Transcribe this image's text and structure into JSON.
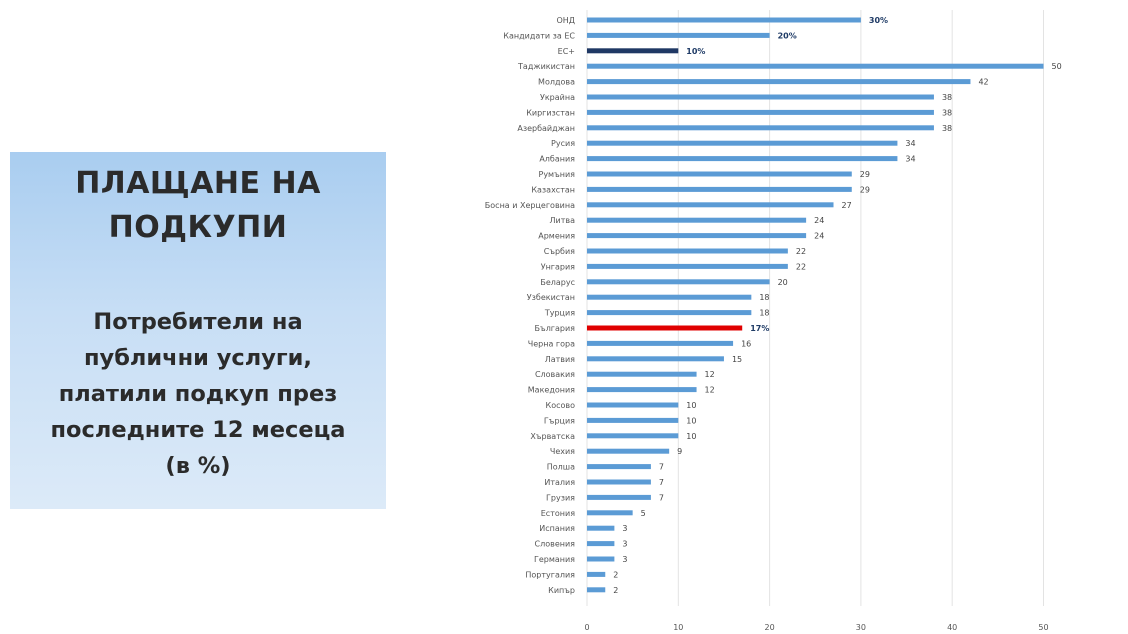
{
  "panel": {
    "title_lines": [
      "ПЛАЩАНЕ НА",
      "ПОДКУПИ"
    ],
    "subtitle_lines": [
      "Потребители на",
      "публични услуги,",
      "платили подкуп през",
      "последните 12 месеца",
      "(в %)"
    ]
  },
  "chart_data": {
    "type": "bar",
    "orientation": "horizontal",
    "xlim": [
      0,
      60
    ],
    "ticks": [
      0,
      10,
      20,
      30,
      40,
      50,
      60
    ],
    "grid": true,
    "colors": {
      "default": "#5b9bd5",
      "eu": "#1f3864",
      "bulgaria": "#e00000"
    },
    "categories": [
      {
        "name": "ОНД",
        "value": 30,
        "label": "30%",
        "bold": true
      },
      {
        "name": "Кандидати за ЕС",
        "value": 20,
        "label": "20%",
        "bold": true
      },
      {
        "name": "ЕС+",
        "value": 10,
        "label": "10%",
        "bold": true,
        "color": "eu"
      },
      {
        "name": "Таджикистан",
        "value": 50,
        "label": "50"
      },
      {
        "name": "Молдова",
        "value": 42,
        "label": "42"
      },
      {
        "name": "Украйна",
        "value": 38,
        "label": "38"
      },
      {
        "name": "Киргизстан",
        "value": 38,
        "label": "38"
      },
      {
        "name": "Азербайджан",
        "value": 38,
        "label": "38"
      },
      {
        "name": "Русия",
        "value": 34,
        "label": "34"
      },
      {
        "name": "Албания",
        "value": 34,
        "label": "34"
      },
      {
        "name": "Румъния",
        "value": 29,
        "label": "29"
      },
      {
        "name": "Казахстан",
        "value": 29,
        "label": "29"
      },
      {
        "name": "Босна и Херцеговина",
        "value": 27,
        "label": "27"
      },
      {
        "name": "Литва",
        "value": 24,
        "label": "24"
      },
      {
        "name": "Армения",
        "value": 24,
        "label": "24"
      },
      {
        "name": "Сърбия",
        "value": 22,
        "label": "22"
      },
      {
        "name": "Унгария",
        "value": 22,
        "label": "22"
      },
      {
        "name": "Беларус",
        "value": 20,
        "label": "20"
      },
      {
        "name": "Узбекистан",
        "value": 18,
        "label": "18"
      },
      {
        "name": "Турция",
        "value": 18,
        "label": "18"
      },
      {
        "name": "България",
        "value": 17,
        "label": "17%",
        "bold": true,
        "color": "bulgaria"
      },
      {
        "name": "Черна гора",
        "value": 16,
        "label": "16"
      },
      {
        "name": "Латвия",
        "value": 15,
        "label": "15"
      },
      {
        "name": "Словакия",
        "value": 12,
        "label": "12"
      },
      {
        "name": "Македония",
        "value": 12,
        "label": "12"
      },
      {
        "name": "Косово",
        "value": 10,
        "label": "10"
      },
      {
        "name": "Гърция",
        "value": 10,
        "label": "10"
      },
      {
        "name": "Хърватска",
        "value": 10,
        "label": "10"
      },
      {
        "name": "Чехия",
        "value": 9,
        "label": "9"
      },
      {
        "name": "Полша",
        "value": 7,
        "label": "7"
      },
      {
        "name": "Италия",
        "value": 7,
        "label": "7"
      },
      {
        "name": "Грузия",
        "value": 7,
        "label": "7"
      },
      {
        "name": "Естония",
        "value": 5,
        "label": "5"
      },
      {
        "name": "Испания",
        "value": 3,
        "label": "3"
      },
      {
        "name": "Словения",
        "value": 3,
        "label": "3"
      },
      {
        "name": "Германия",
        "value": 3,
        "label": "3"
      },
      {
        "name": "Португалия",
        "value": 2,
        "label": "2"
      },
      {
        "name": "Кипър",
        "value": 2,
        "label": "2"
      }
    ]
  }
}
